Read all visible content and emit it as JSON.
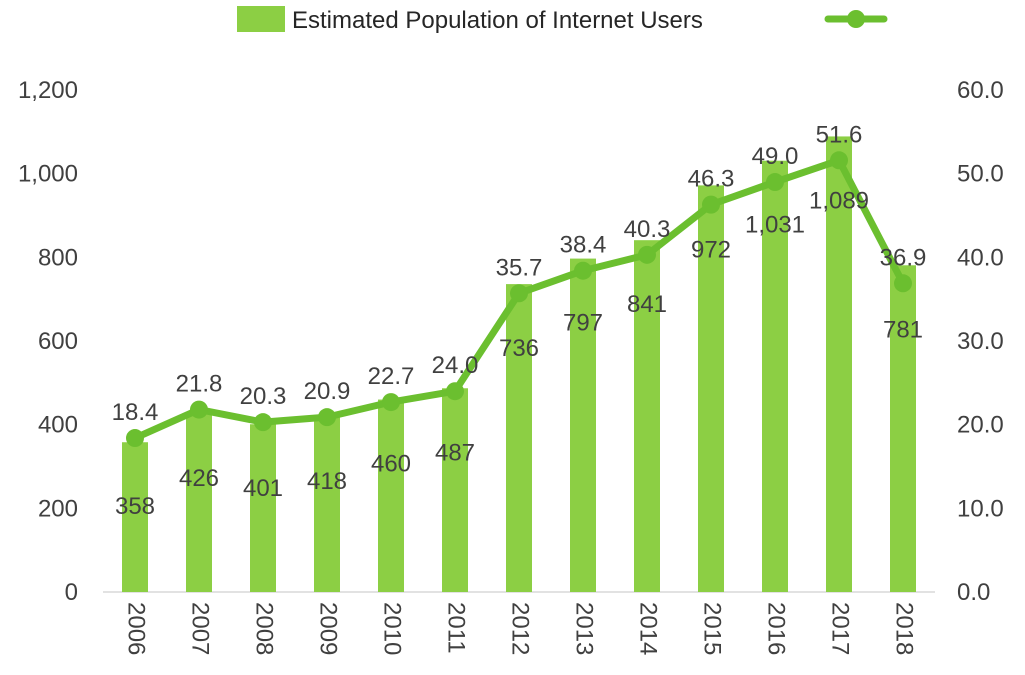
{
  "chart_data": {
    "type": "bar",
    "categories": [
      "2006",
      "2007",
      "2008",
      "2009",
      "2010",
      "2011",
      "2012",
      "2013",
      "2014",
      "2015",
      "2016",
      "2017",
      "2018"
    ],
    "series": [
      {
        "name": "Estimated Population of Internet Users",
        "type": "bar",
        "axis": "left",
        "color": "#8ccf44",
        "values": [
          358,
          426,
          401,
          418,
          460,
          487,
          736,
          797,
          841,
          972,
          1031,
          1089,
          781
        ],
        "data_labels": [
          "358",
          "426",
          "401",
          "418",
          "460",
          "487",
          "736",
          "797",
          "841",
          "972",
          "1,031",
          "1,089",
          "781"
        ]
      },
      {
        "name": "",
        "type": "line",
        "axis": "right",
        "color": "#6bbf2f",
        "values": [
          18.4,
          21.8,
          20.3,
          20.9,
          22.7,
          24.0,
          35.7,
          38.4,
          40.3,
          46.3,
          49.0,
          51.6,
          36.9
        ],
        "data_labels": [
          "18.4",
          "21.8",
          "20.3",
          "20.9",
          "22.7",
          "24.0",
          "35.7",
          "38.4",
          "40.3",
          "46.3",
          "49.0",
          "51.6",
          "36.9"
        ]
      }
    ],
    "left_axis": {
      "min": 0,
      "max": 1200,
      "ticks": [
        "0",
        "200",
        "400",
        "600",
        "800",
        "1,000",
        "1,200"
      ]
    },
    "right_axis": {
      "min": 0,
      "max": 60,
      "ticks": [
        "0.0",
        "10.0",
        "20.0",
        "30.0",
        "40.0",
        "50.0",
        "60.0"
      ]
    },
    "grid": false,
    "legend_position": "top",
    "title": "",
    "xlabel": "",
    "ylabel": ""
  }
}
